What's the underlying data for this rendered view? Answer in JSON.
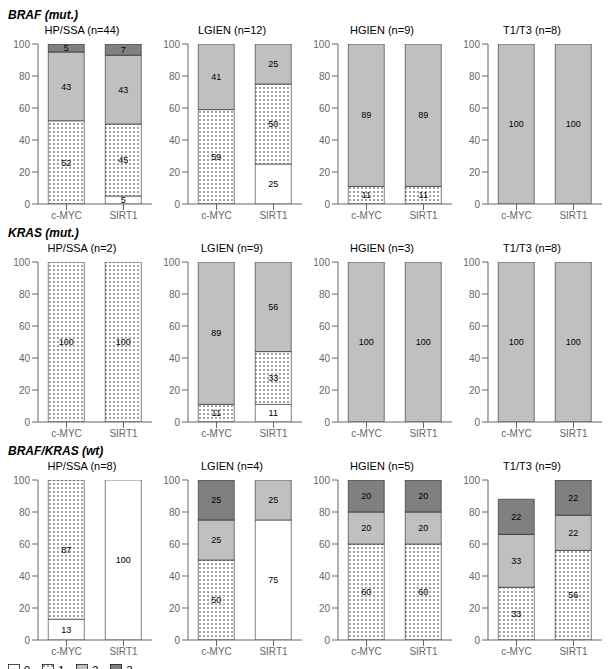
{
  "chart_data": [
    {
      "type": "bar",
      "title": "HP/SSA (n=44)",
      "subtitle": "BRAF (mut.)",
      "categories": [
        "c-MYC",
        "SIRT1"
      ],
      "stacked": true,
      "data_labels": true,
      "grid": false,
      "ylim": [
        0,
        100
      ],
      "yticks": [
        0,
        20,
        40,
        60,
        80,
        100
      ],
      "series": [
        {
          "name": "0",
          "color": "#ffffff",
          "values": [
            0,
            5
          ]
        },
        {
          "name": "1",
          "color": "#ffffff",
          "values": [
            52,
            45
          ]
        },
        {
          "name": "2",
          "color": "#c0c0c0",
          "values": [
            43,
            43
          ]
        },
        {
          "name": "3",
          "color": "#808080",
          "values": [
            5,
            7
          ]
        }
      ]
    },
    {
      "type": "bar",
      "title": "LGIEN (n=12)",
      "categories": [
        "c-MYC",
        "SIRT1"
      ],
      "stacked": true,
      "data_labels": true,
      "grid": false,
      "ylim": [
        0,
        100
      ],
      "yticks": [
        0,
        20,
        40,
        60,
        80,
        100
      ],
      "series": [
        {
          "name": "0",
          "color": "#ffffff",
          "values": [
            0,
            25
          ]
        },
        {
          "name": "1",
          "color": "#ffffff",
          "values": [
            59,
            50
          ]
        },
        {
          "name": "2",
          "color": "#c0c0c0",
          "values": [
            41,
            25
          ]
        },
        {
          "name": "3",
          "color": "#808080",
          "values": [
            0,
            0
          ]
        }
      ]
    },
    {
      "type": "bar",
      "title": "HGIEN (n=9)",
      "categories": [
        "c-MYC",
        "SIRT1"
      ],
      "stacked": true,
      "data_labels": true,
      "grid": false,
      "ylim": [
        0,
        100
      ],
      "yticks": [
        0,
        20,
        40,
        60,
        80,
        100
      ],
      "series": [
        {
          "name": "0",
          "color": "#ffffff",
          "values": [
            0,
            0
          ]
        },
        {
          "name": "1",
          "color": "#ffffff",
          "values": [
            11,
            11
          ]
        },
        {
          "name": "2",
          "color": "#c0c0c0",
          "values": [
            89,
            89
          ]
        },
        {
          "name": "3",
          "color": "#808080",
          "values": [
            0,
            0
          ]
        }
      ]
    },
    {
      "type": "bar",
      "title": "T1/T3 (n=8)",
      "categories": [
        "c-MYC",
        "SIRT1"
      ],
      "stacked": true,
      "data_labels": true,
      "grid": false,
      "ylim": [
        0,
        100
      ],
      "yticks": [
        0,
        20,
        40,
        60,
        80,
        100
      ],
      "series": [
        {
          "name": "0",
          "color": "#ffffff",
          "values": [
            0,
            0
          ]
        },
        {
          "name": "1",
          "color": "#ffffff",
          "values": [
            0,
            0
          ]
        },
        {
          "name": "2",
          "color": "#c0c0c0",
          "values": [
            100,
            100
          ]
        },
        {
          "name": "3",
          "color": "#808080",
          "values": [
            0,
            0
          ]
        }
      ]
    },
    {
      "type": "bar",
      "title": "HP/SSA (n=2)",
      "subtitle": "KRAS (mut.)",
      "categories": [
        "c-MYC",
        "SIRT1"
      ],
      "stacked": true,
      "data_labels": true,
      "grid": false,
      "ylim": [
        0,
        100
      ],
      "yticks": [
        0,
        20,
        40,
        60,
        80,
        100
      ],
      "series": [
        {
          "name": "0",
          "color": "#ffffff",
          "values": [
            0,
            0
          ]
        },
        {
          "name": "1",
          "color": "#ffffff",
          "values": [
            100,
            100
          ]
        },
        {
          "name": "2",
          "color": "#c0c0c0",
          "values": [
            0,
            0
          ]
        },
        {
          "name": "3",
          "color": "#808080",
          "values": [
            0,
            0
          ]
        }
      ]
    },
    {
      "type": "bar",
      "title": "LGIEN (n=9)",
      "categories": [
        "c-MYC",
        "SIRT1"
      ],
      "stacked": true,
      "data_labels": true,
      "grid": false,
      "ylim": [
        0,
        100
      ],
      "yticks": [
        0,
        20,
        40,
        60,
        80,
        100
      ],
      "series": [
        {
          "name": "0",
          "color": "#ffffff",
          "values": [
            0,
            11
          ]
        },
        {
          "name": "1",
          "color": "#ffffff",
          "values": [
            11,
            33
          ]
        },
        {
          "name": "2",
          "color": "#c0c0c0",
          "values": [
            89,
            56
          ]
        },
        {
          "name": "3",
          "color": "#808080",
          "values": [
            0,
            0
          ]
        }
      ]
    },
    {
      "type": "bar",
      "title": "HGIEN (n=3)",
      "categories": [
        "c-MYC",
        "SIRT1"
      ],
      "stacked": true,
      "data_labels": true,
      "grid": false,
      "ylim": [
        0,
        100
      ],
      "yticks": [
        0,
        20,
        40,
        60,
        80,
        100
      ],
      "series": [
        {
          "name": "0",
          "color": "#ffffff",
          "values": [
            0,
            0
          ]
        },
        {
          "name": "1",
          "color": "#ffffff",
          "values": [
            0,
            0
          ]
        },
        {
          "name": "2",
          "color": "#c0c0c0",
          "values": [
            100,
            100
          ]
        },
        {
          "name": "3",
          "color": "#808080",
          "values": [
            0,
            0
          ]
        }
      ]
    },
    {
      "type": "bar",
      "title": "T1/T3 (n=8)",
      "categories": [
        "c-MYC",
        "SIRT1"
      ],
      "stacked": true,
      "data_labels": true,
      "grid": false,
      "ylim": [
        0,
        100
      ],
      "yticks": [
        0,
        20,
        40,
        60,
        80,
        100
      ],
      "series": [
        {
          "name": "0",
          "color": "#ffffff",
          "values": [
            0,
            0
          ]
        },
        {
          "name": "1",
          "color": "#ffffff",
          "values": [
            0,
            0
          ]
        },
        {
          "name": "2",
          "color": "#c0c0c0",
          "values": [
            100,
            100
          ]
        },
        {
          "name": "3",
          "color": "#808080",
          "values": [
            0,
            0
          ]
        }
      ]
    },
    {
      "type": "bar",
      "title": "HP/SSA (n=8)",
      "subtitle": "BRAF/KRAS (wt)",
      "legend": "lower left",
      "categories": [
        "c-MYC",
        "SIRT1"
      ],
      "stacked": true,
      "data_labels": true,
      "grid": false,
      "ylim": [
        0,
        100
      ],
      "yticks": [
        0,
        20,
        40,
        60,
        80,
        100
      ],
      "series": [
        {
          "name": "0",
          "color": "#ffffff",
          "values": [
            13,
            100
          ]
        },
        {
          "name": "1",
          "color": "#ffffff",
          "values": [
            87,
            0
          ]
        },
        {
          "name": "2",
          "color": "#c0c0c0",
          "values": [
            0,
            0
          ]
        },
        {
          "name": "3",
          "color": "#808080",
          "values": [
            0,
            0
          ]
        }
      ]
    },
    {
      "type": "bar",
      "title": "LGIEN (n=4)",
      "categories": [
        "c-MYC",
        "SIRT1"
      ],
      "stacked": true,
      "data_labels": true,
      "grid": false,
      "ylim": [
        0,
        100
      ],
      "yticks": [
        0,
        20,
        40,
        60,
        80,
        100
      ],
      "series": [
        {
          "name": "0",
          "color": "#ffffff",
          "values": [
            0,
            75
          ]
        },
        {
          "name": "1",
          "color": "#ffffff",
          "values": [
            50,
            0
          ]
        },
        {
          "name": "2",
          "color": "#c0c0c0",
          "values": [
            25,
            25
          ]
        },
        {
          "name": "3",
          "color": "#808080",
          "values": [
            25,
            0
          ]
        }
      ]
    },
    {
      "type": "bar",
      "title": "HGIEN (n=5)",
      "categories": [
        "c-MYC",
        "SIRT1"
      ],
      "stacked": true,
      "data_labels": true,
      "grid": false,
      "ylim": [
        0,
        100
      ],
      "yticks": [
        0,
        20,
        40,
        60,
        80,
        100
      ],
      "series": [
        {
          "name": "0",
          "color": "#ffffff",
          "values": [
            0,
            0
          ]
        },
        {
          "name": "1",
          "color": "#ffffff",
          "values": [
            60,
            60
          ]
        },
        {
          "name": "2",
          "color": "#c0c0c0",
          "values": [
            20,
            20
          ]
        },
        {
          "name": "3",
          "color": "#808080",
          "values": [
            20,
            20
          ]
        }
      ]
    },
    {
      "type": "bar",
      "title": "T1/T3 (n=9)",
      "categories": [
        "c-MYC",
        "SIRT1"
      ],
      "stacked": true,
      "data_labels": true,
      "grid": false,
      "ylim": [
        0,
        100
      ],
      "yticks": [
        0,
        20,
        40,
        60,
        80,
        100
      ],
      "series": [
        {
          "name": "0",
          "color": "#ffffff",
          "values": [
            0,
            0
          ]
        },
        {
          "name": "1",
          "color": "#ffffff",
          "values": [
            33,
            56
          ]
        },
        {
          "name": "2",
          "color": "#c0c0c0",
          "values": [
            33,
            22
          ]
        },
        {
          "name": "3",
          "color": "#808080",
          "values": [
            22,
            22
          ]
        }
      ]
    }
  ]
}
